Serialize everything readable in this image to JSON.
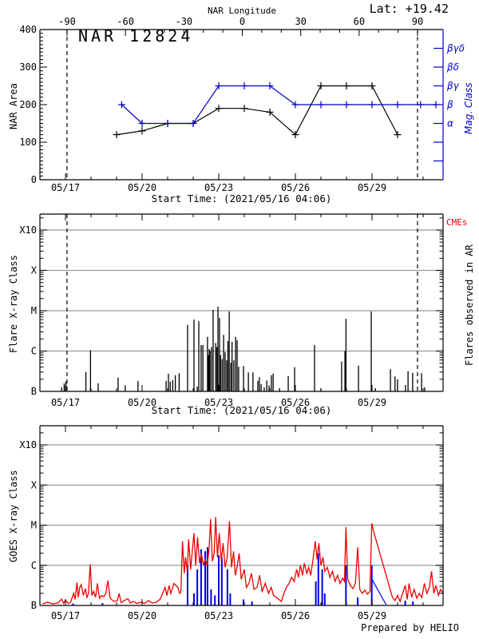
{
  "page": {
    "lat_label": "Lat: +19.42",
    "prepared_by": "Prepared by HELIO",
    "start_time_caption": "Start Time: (2021/05/16 04:06)"
  },
  "colors": {
    "accent_blue": "#0000cc",
    "flare_red": "#ee0000",
    "grid_gray": "#9a9a9a",
    "axis_black": "#000000"
  },
  "chart_data": [
    {
      "id": "nar-area-panel",
      "type": "line",
      "title": "NAR 12824",
      "top_axis": {
        "label": "NAR Longitude",
        "tick_values": [
          -90,
          -60,
          -30,
          0,
          30,
          60,
          90
        ],
        "tick_labels": [
          "-90",
          "-60",
          "-30",
          "0",
          "30",
          "60",
          "90"
        ]
      },
      "x_axis": {
        "tick_times": [
          17,
          20,
          23,
          26,
          29
        ],
        "tick_labels": [
          "05/17",
          "05/20",
          "05/23",
          "05/26",
          "05/29"
        ],
        "range_days": [
          16.0,
          31.78
        ]
      },
      "y_axis": {
        "label": "NAR Area",
        "ticks": [
          0,
          100,
          200,
          300,
          400
        ],
        "range": [
          0,
          400
        ]
      },
      "right_axis": {
        "label": "Mag. Class",
        "tick_values": [
          150,
          200,
          250,
          300,
          350
        ],
        "tick_labels": [
          "α",
          "β",
          "βγ",
          "βδ",
          "βγδ"
        ],
        "extra_tick_values": [
          50,
          100
        ]
      },
      "limb_marker_days": [
        17.06,
        30.78
      ],
      "series": [
        {
          "name": "nar-area",
          "color": "#000000",
          "points": [
            [
              19,
              120
            ],
            [
              20,
              130
            ],
            [
              21,
              150
            ],
            [
              22,
              150
            ],
            [
              23,
              190
            ],
            [
              24,
              190
            ],
            [
              25,
              180
            ],
            [
              26,
              120
            ],
            [
              27,
              250
            ],
            [
              28,
              250
            ],
            [
              29,
              250
            ],
            [
              30,
              120
            ]
          ]
        },
        {
          "name": "mag-class",
          "color": "#0000cc",
          "points": [
            [
              19.2,
              200
            ],
            [
              20,
              150
            ],
            [
              21,
              150
            ],
            [
              22,
              150
            ],
            [
              23,
              250
            ],
            [
              24,
              250
            ],
            [
              25,
              250
            ],
            [
              26,
              200
            ],
            [
              27,
              200
            ],
            [
              28,
              200
            ],
            [
              29,
              200
            ],
            [
              30,
              200
            ],
            [
              30.9,
              200
            ],
            [
              31.5,
              200
            ]
          ]
        }
      ]
    },
    {
      "id": "flare-panel",
      "type": "bar",
      "y_axis": {
        "label": "Flare X-ray Class",
        "tick_labels": [
          "B",
          "C",
          "M",
          "X",
          "X10"
        ]
      },
      "right_labels": {
        "cmes": "CMEs",
        "flares": "Flares observed in AR"
      },
      "x_axis": {
        "tick_times": [
          17,
          20,
          23,
          26,
          29
        ],
        "tick_labels": [
          "05/17",
          "05/20",
          "05/23",
          "05/26",
          "05/29"
        ]
      },
      "limb_marker_days": [
        17.06,
        30.78
      ],
      "bars": [
        [
          16.85,
          0.1
        ],
        [
          16.95,
          0.2
        ],
        [
          17.02,
          0.25
        ],
        [
          17.8,
          0.48
        ],
        [
          17.98,
          1.02
        ],
        [
          18.28,
          0.2
        ],
        [
          19.06,
          0.34
        ],
        [
          19.34,
          0.15
        ],
        [
          19.84,
          0.26
        ],
        [
          20.94,
          0.26
        ],
        [
          21.03,
          0.44
        ],
        [
          21.1,
          0.24
        ],
        [
          21.2,
          0.28
        ],
        [
          21.3,
          0.4
        ],
        [
          21.45,
          0.45
        ],
        [
          21.78,
          1.65
        ],
        [
          22.03,
          1.78
        ],
        [
          22.16,
          0.12
        ],
        [
          22.22,
          1.74
        ],
        [
          22.31,
          1.15
        ],
        [
          22.38,
          1.15
        ],
        [
          22.56,
          1.35
        ],
        [
          22.6,
          0.9
        ],
        [
          22.63,
          1.05
        ],
        [
          22.66,
          1.0
        ],
        [
          22.72,
          1.1
        ],
        [
          22.78,
          2.02
        ],
        [
          22.88,
          1.2
        ],
        [
          22.93,
          1.1
        ],
        [
          22.97,
          2.1
        ],
        [
          23.03,
          1.82
        ],
        [
          23.07,
          0.9
        ],
        [
          23.13,
          0.8
        ],
        [
          23.19,
          1.4
        ],
        [
          23.25,
          0.97
        ],
        [
          23.31,
          0.77
        ],
        [
          23.36,
          1.25
        ],
        [
          23.41,
          1.98
        ],
        [
          23.47,
          0.71
        ],
        [
          23.52,
          1.23
        ],
        [
          23.59,
          0.77
        ],
        [
          23.66,
          1.35
        ],
        [
          23.72,
          1.27
        ],
        [
          23.78,
          0.61
        ],
        [
          23.97,
          0.63
        ],
        [
          24.16,
          0.47
        ],
        [
          24.34,
          0.47
        ],
        [
          24.53,
          0.26
        ],
        [
          24.59,
          0.35
        ],
        [
          24.66,
          0.18
        ],
        [
          24.78,
          0.1
        ],
        [
          24.88,
          0.27
        ],
        [
          24.97,
          0.15
        ],
        [
          25.06,
          0.4
        ],
        [
          25.13,
          0.44
        ],
        [
          25.38,
          0.08
        ],
        [
          25.72,
          0.38
        ],
        [
          25.97,
          0.6
        ],
        [
          26.75,
          1.15
        ],
        [
          27.0,
          0.08
        ],
        [
          27.81,
          0.74
        ],
        [
          27.94,
          1.0
        ],
        [
          27.96,
          0.9
        ],
        [
          27.98,
          1.8
        ],
        [
          28.47,
          0.64
        ],
        [
          28.97,
          1.98
        ],
        [
          29.13,
          0.08
        ],
        [
          29.72,
          0.55
        ],
        [
          29.9,
          0.37
        ],
        [
          30.0,
          0.3
        ],
        [
          30.31,
          0.16
        ],
        [
          30.41,
          0.5
        ],
        [
          30.59,
          0.46
        ],
        [
          30.94,
          0.45
        ],
        [
          31.06,
          0.1
        ]
      ]
    },
    {
      "id": "goes-panel",
      "type": "line",
      "y_axis": {
        "label": "GOES X-ray Class",
        "tick_labels": [
          "B",
          "C",
          "M",
          "X",
          "X10"
        ]
      },
      "x_axis": {
        "tick_times": [
          17,
          20,
          23,
          26,
          29
        ],
        "tick_labels": [
          "05/17",
          "05/20",
          "05/23",
          "05/26",
          "05/29"
        ]
      },
      "goes_curve": [
        [
          16.1,
          0.04
        ],
        [
          16.3,
          0.08
        ],
        [
          16.5,
          0.04
        ],
        [
          16.7,
          0.06
        ],
        [
          16.85,
          0.16
        ],
        [
          16.93,
          0.05
        ],
        [
          17.0,
          0.14
        ],
        [
          17.1,
          0.05
        ],
        [
          17.2,
          0.08
        ],
        [
          17.32,
          0.3
        ],
        [
          17.38,
          0.15
        ],
        [
          17.45,
          0.57
        ],
        [
          17.5,
          0.2
        ],
        [
          17.56,
          0.45
        ],
        [
          17.62,
          0.52
        ],
        [
          17.7,
          0.25
        ],
        [
          17.78,
          0.42
        ],
        [
          17.84,
          0.2
        ],
        [
          17.9,
          0.3
        ],
        [
          17.97,
          1.03
        ],
        [
          18.03,
          0.25
        ],
        [
          18.1,
          0.35
        ],
        [
          18.18,
          0.2
        ],
        [
          18.25,
          0.55
        ],
        [
          18.33,
          0.18
        ],
        [
          18.42,
          0.25
        ],
        [
          18.5,
          0.22
        ],
        [
          18.58,
          0.3
        ],
        [
          18.66,
          0.62
        ],
        [
          18.74,
          0.2
        ],
        [
          18.8,
          0.15
        ],
        [
          18.9,
          0.1
        ],
        [
          19.03,
          0.12
        ],
        [
          19.1,
          0.3
        ],
        [
          19.18,
          0.07
        ],
        [
          19.3,
          0.12
        ],
        [
          19.44,
          0.17
        ],
        [
          19.55,
          0.06
        ],
        [
          19.65,
          0.1
        ],
        [
          19.8,
          0.05
        ],
        [
          19.95,
          0.08
        ],
        [
          20.1,
          0.05
        ],
        [
          20.25,
          0.12
        ],
        [
          20.4,
          0.06
        ],
        [
          20.55,
          0.08
        ],
        [
          20.7,
          0.15
        ],
        [
          20.8,
          0.3
        ],
        [
          20.9,
          0.45
        ],
        [
          20.97,
          0.25
        ],
        [
          21.06,
          0.5
        ],
        [
          21.12,
          0.3
        ],
        [
          21.25,
          0.55
        ],
        [
          21.32,
          0.5
        ],
        [
          21.4,
          0.45
        ],
        [
          21.47,
          0.3
        ],
        [
          21.52,
          0.35
        ],
        [
          21.58,
          1.6
        ],
        [
          21.65,
          0.8
        ],
        [
          21.7,
          1.2
        ],
        [
          21.77,
          0.85
        ],
        [
          21.82,
          1.65
        ],
        [
          21.9,
          0.9
        ],
        [
          21.97,
          1.4
        ],
        [
          22.03,
          1.8
        ],
        [
          22.1,
          1.0
        ],
        [
          22.17,
          1.7
        ],
        [
          22.25,
          1.05
        ],
        [
          22.32,
          1.3
        ],
        [
          22.4,
          1.0
        ],
        [
          22.47,
          1.15
        ],
        [
          22.55,
          1.0
        ],
        [
          22.62,
          1.4
        ],
        [
          22.68,
          2.15
        ],
        [
          22.75,
          1.1
        ],
        [
          22.82,
          1.3
        ],
        [
          22.88,
          2.2
        ],
        [
          22.95,
          1.2
        ],
        [
          23.02,
          1.8
        ],
        [
          23.1,
          1.1
        ],
        [
          23.17,
          1.55
        ],
        [
          23.25,
          0.95
        ],
        [
          23.33,
          1.2
        ],
        [
          23.42,
          2.1
        ],
        [
          23.5,
          0.95
        ],
        [
          23.58,
          1.35
        ],
        [
          23.65,
          0.75
        ],
        [
          23.73,
          1.0
        ],
        [
          23.8,
          1.3
        ],
        [
          23.88,
          0.65
        ],
        [
          24.0,
          0.9
        ],
        [
          24.08,
          0.45
        ],
        [
          24.18,
          0.55
        ],
        [
          24.28,
          0.8
        ],
        [
          24.38,
          0.4
        ],
        [
          24.5,
          0.45
        ],
        [
          24.6,
          0.75
        ],
        [
          24.7,
          0.35
        ],
        [
          24.82,
          0.55
        ],
        [
          24.95,
          0.3
        ],
        [
          25.05,
          0.45
        ],
        [
          25.15,
          0.25
        ],
        [
          25.3,
          0.18
        ],
        [
          25.45,
          0.1
        ],
        [
          25.55,
          0.3
        ],
        [
          25.65,
          0.45
        ],
        [
          25.75,
          0.55
        ],
        [
          25.85,
          0.7
        ],
        [
          25.95,
          0.6
        ],
        [
          26.05,
          0.9
        ],
        [
          26.12,
          0.7
        ],
        [
          26.2,
          1.0
        ],
        [
          26.28,
          0.75
        ],
        [
          26.35,
          1.05
        ],
        [
          26.45,
          0.8
        ],
        [
          26.52,
          0.95
        ],
        [
          26.6,
          0.75
        ],
        [
          26.68,
          1.1
        ],
        [
          26.78,
          1.6
        ],
        [
          26.85,
          1.15
        ],
        [
          26.92,
          1.55
        ],
        [
          27.0,
          1.0
        ],
        [
          27.08,
          1.2
        ],
        [
          27.15,
          0.85
        ],
        [
          27.25,
          0.95
        ],
        [
          27.35,
          0.7
        ],
        [
          27.45,
          0.85
        ],
        [
          27.55,
          0.6
        ],
        [
          27.65,
          0.75
        ],
        [
          27.75,
          0.55
        ],
        [
          27.85,
          0.68
        ],
        [
          27.92,
          0.6
        ],
        [
          27.98,
          1.95
        ],
        [
          28.05,
          0.65
        ],
        [
          28.15,
          0.5
        ],
        [
          28.25,
          0.42
        ],
        [
          28.35,
          0.55
        ],
        [
          28.44,
          1.45
        ],
        [
          28.52,
          0.4
        ],
        [
          28.62,
          0.3
        ],
        [
          28.72,
          0.38
        ],
        [
          28.82,
          0.28
        ],
        [
          28.92,
          0.35
        ],
        [
          28.99,
          2.05
        ],
        [
          29.06,
          1.85
        ],
        [
          29.8,
          0.2
        ],
        [
          29.9,
          0.12
        ],
        [
          30.0,
          0.25
        ],
        [
          30.1,
          0.1
        ],
        [
          30.2,
          0.3
        ],
        [
          30.3,
          0.5
        ],
        [
          30.38,
          0.15
        ],
        [
          30.45,
          0.55
        ],
        [
          30.55,
          0.2
        ],
        [
          30.65,
          0.4
        ],
        [
          30.75,
          0.18
        ],
        [
          30.85,
          0.3
        ],
        [
          30.95,
          0.2
        ],
        [
          31.05,
          0.55
        ],
        [
          31.15,
          0.3
        ],
        [
          31.25,
          0.45
        ],
        [
          31.33,
          0.85
        ],
        [
          31.42,
          0.3
        ],
        [
          31.5,
          0.5
        ],
        [
          31.6,
          0.25
        ],
        [
          31.68,
          0.4
        ],
        [
          31.78,
          0.3
        ]
      ],
      "ar_flare_bars": [
        [
          17.3,
          0.05
        ],
        [
          18.45,
          0.06
        ],
        [
          21.78,
          1.0
        ],
        [
          22.03,
          0.3
        ],
        [
          22.16,
          0.9
        ],
        [
          22.31,
          1.4
        ],
        [
          22.47,
          1.35
        ],
        [
          22.56,
          1.45
        ],
        [
          22.7,
          0.4
        ],
        [
          22.85,
          0.25
        ],
        [
          23.0,
          1.25
        ],
        [
          23.12,
          1.2
        ],
        [
          23.34,
          0.9
        ],
        [
          23.45,
          0.3
        ],
        [
          23.97,
          0.15
        ],
        [
          24.3,
          0.1
        ],
        [
          26.8,
          0.6
        ],
        [
          26.9,
          1.3
        ],
        [
          27.05,
          0.9
        ],
        [
          27.15,
          0.3
        ],
        [
          27.98,
          1.0
        ],
        [
          28.44,
          0.2
        ],
        [
          28.99,
          1.0
        ],
        [
          30.3,
          0.12
        ],
        [
          30.6,
          0.1
        ]
      ],
      "ar_flare_decay": [
        [
          29.0,
          0.65
        ],
        [
          29.55,
          0.02
        ]
      ]
    }
  ]
}
